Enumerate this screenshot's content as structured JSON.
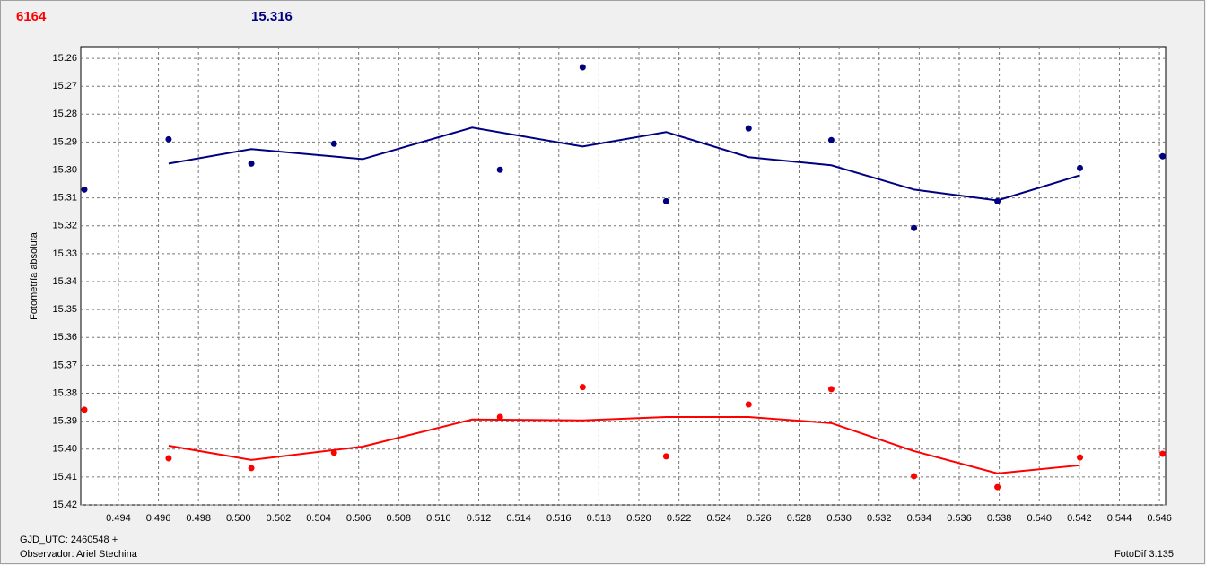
{
  "chart_data": {
    "type": "scatter",
    "title": "6164",
    "subtitle": "15.316",
    "y_label": "Fotometría absoluta",
    "footer_left_1": "GJD_UTC: 2460548 +",
    "footer_left_2": "Observador: Ariel Stechina",
    "footer_right": "FotoDif 3.135",
    "xlim": [
      0.49212,
      0.54631
    ],
    "ylim": [
      15.2558,
      15.42
    ],
    "y_inverted": true,
    "grid": true,
    "xticks": [
      0.494,
      0.496,
      0.498,
      {
        "value": 0.5,
        "label": "0.500"
      },
      0.502,
      0.504,
      0.506,
      0.508,
      {
        "value": 0.51,
        "label": "0.510"
      },
      0.512,
      0.514,
      0.516,
      0.518,
      {
        "value": 0.52,
        "label": "0.520"
      },
      0.522,
      0.524,
      0.526,
      0.528,
      {
        "value": 0.53,
        "label": "0.530"
      },
      0.532,
      0.534,
      0.536,
      0.538,
      {
        "value": 0.54,
        "label": "0.540"
      },
      0.542,
      0.544,
      0.546
    ],
    "yticks": [
      15.26,
      15.27,
      15.28,
      15.29,
      {
        "value": 15.3,
        "label": "15.30"
      },
      15.31,
      15.32,
      15.33,
      15.34,
      15.35,
      15.36,
      15.37,
      15.38,
      15.39,
      {
        "value": 15.4,
        "label": "15.40"
      },
      15.41,
      15.42
    ],
    "series": [
      {
        "style": "markers",
        "color": "#000080",
        "x": [
          0.4923,
          0.49651,
          0.50064,
          0.50477,
          0.51306,
          0.51719,
          0.52136,
          0.52548,
          0.52961,
          0.53374,
          0.53791,
          0.54203,
          0.54616
        ],
        "values": [
          15.307,
          15.289,
          15.2977,
          15.2906,
          15.2999,
          15.2632,
          15.3112,
          15.2851,
          15.2893,
          15.3208,
          15.3112,
          15.2993,
          15.2951
        ]
      },
      {
        "style": "markers",
        "color": "#ff0000",
        "x": [
          0.4923,
          0.49651,
          0.50064,
          0.50477,
          0.51306,
          0.51719,
          0.52136,
          0.52548,
          0.52961,
          0.53374,
          0.53791,
          0.54203,
          0.54616
        ],
        "values": [
          15.3859,
          15.4033,
          15.4068,
          15.4013,
          15.3885,
          15.3778,
          15.4026,
          15.384,
          15.3785,
          15.4097,
          15.4136,
          15.403,
          15.4017
        ]
      },
      {
        "style": "line",
        "color": "#000080",
        "x": [
          0.49651,
          0.50064,
          0.5062,
          0.51167,
          0.51719,
          0.52136,
          0.52548,
          0.52961,
          0.53374,
          0.53791,
          0.54203
        ],
        "values": [
          15.2977,
          15.2925,
          15.2961,
          15.2848,
          15.2916,
          15.2864,
          15.2954,
          15.2983,
          15.307,
          15.3109,
          15.3019
        ]
      },
      {
        "style": "line",
        "color": "#ff0000",
        "x": [
          0.49651,
          0.50064,
          0.5062,
          0.51167,
          0.51719,
          0.52136,
          0.52548,
          0.52961,
          0.53374,
          0.53791,
          0.54203
        ],
        "values": [
          15.3988,
          15.4039,
          15.3991,
          15.3894,
          15.3897,
          15.3885,
          15.3885,
          15.3907,
          15.4007,
          15.4087,
          15.4058
        ]
      }
    ]
  }
}
